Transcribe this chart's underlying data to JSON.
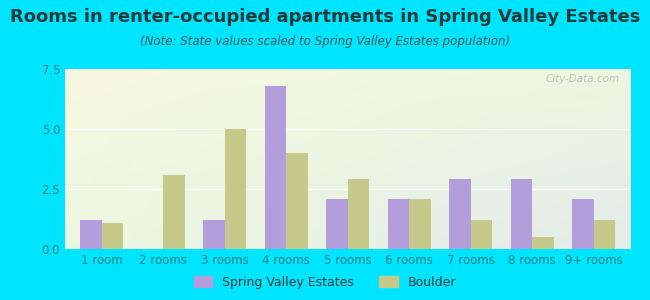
{
  "title": "Rooms in renter-occupied apartments in Spring Valley Estates",
  "subtitle": "(Note: State values scaled to Spring Valley Estates population)",
  "categories": [
    "1 room",
    "2 rooms",
    "3 rooms",
    "4 rooms",
    "5 rooms",
    "6 rooms",
    "7 rooms",
    "8 rooms",
    "9+ rooms"
  ],
  "spring_valley": [
    1.2,
    0.0,
    1.2,
    6.8,
    2.1,
    2.1,
    2.9,
    2.9,
    2.1
  ],
  "boulder": [
    1.1,
    3.1,
    5.0,
    4.0,
    2.9,
    2.1,
    1.2,
    0.5,
    1.2
  ],
  "ylim": [
    0,
    7.5
  ],
  "yticks": [
    0,
    2.5,
    5,
    7.5
  ],
  "bar_color_sve": "#b39ddb",
  "bar_color_boulder": "#c5c98a",
  "background_outer": "#00e5ff",
  "title_color": "#1a1a1a",
  "subtitle_color": "#444444",
  "axis_color": "#00bcd4",
  "tick_color": "#008080",
  "watermark_text": "City-Data.com",
  "watermark_color": "#aaaaaa",
  "legend_label_sve": "Spring Valley Estates",
  "legend_label_boulder": "Boulder",
  "bar_width": 0.35,
  "title_fontsize": 13,
  "subtitle_fontsize": 8.5,
  "tick_fontsize": 8.5,
  "legend_fontsize": 9
}
